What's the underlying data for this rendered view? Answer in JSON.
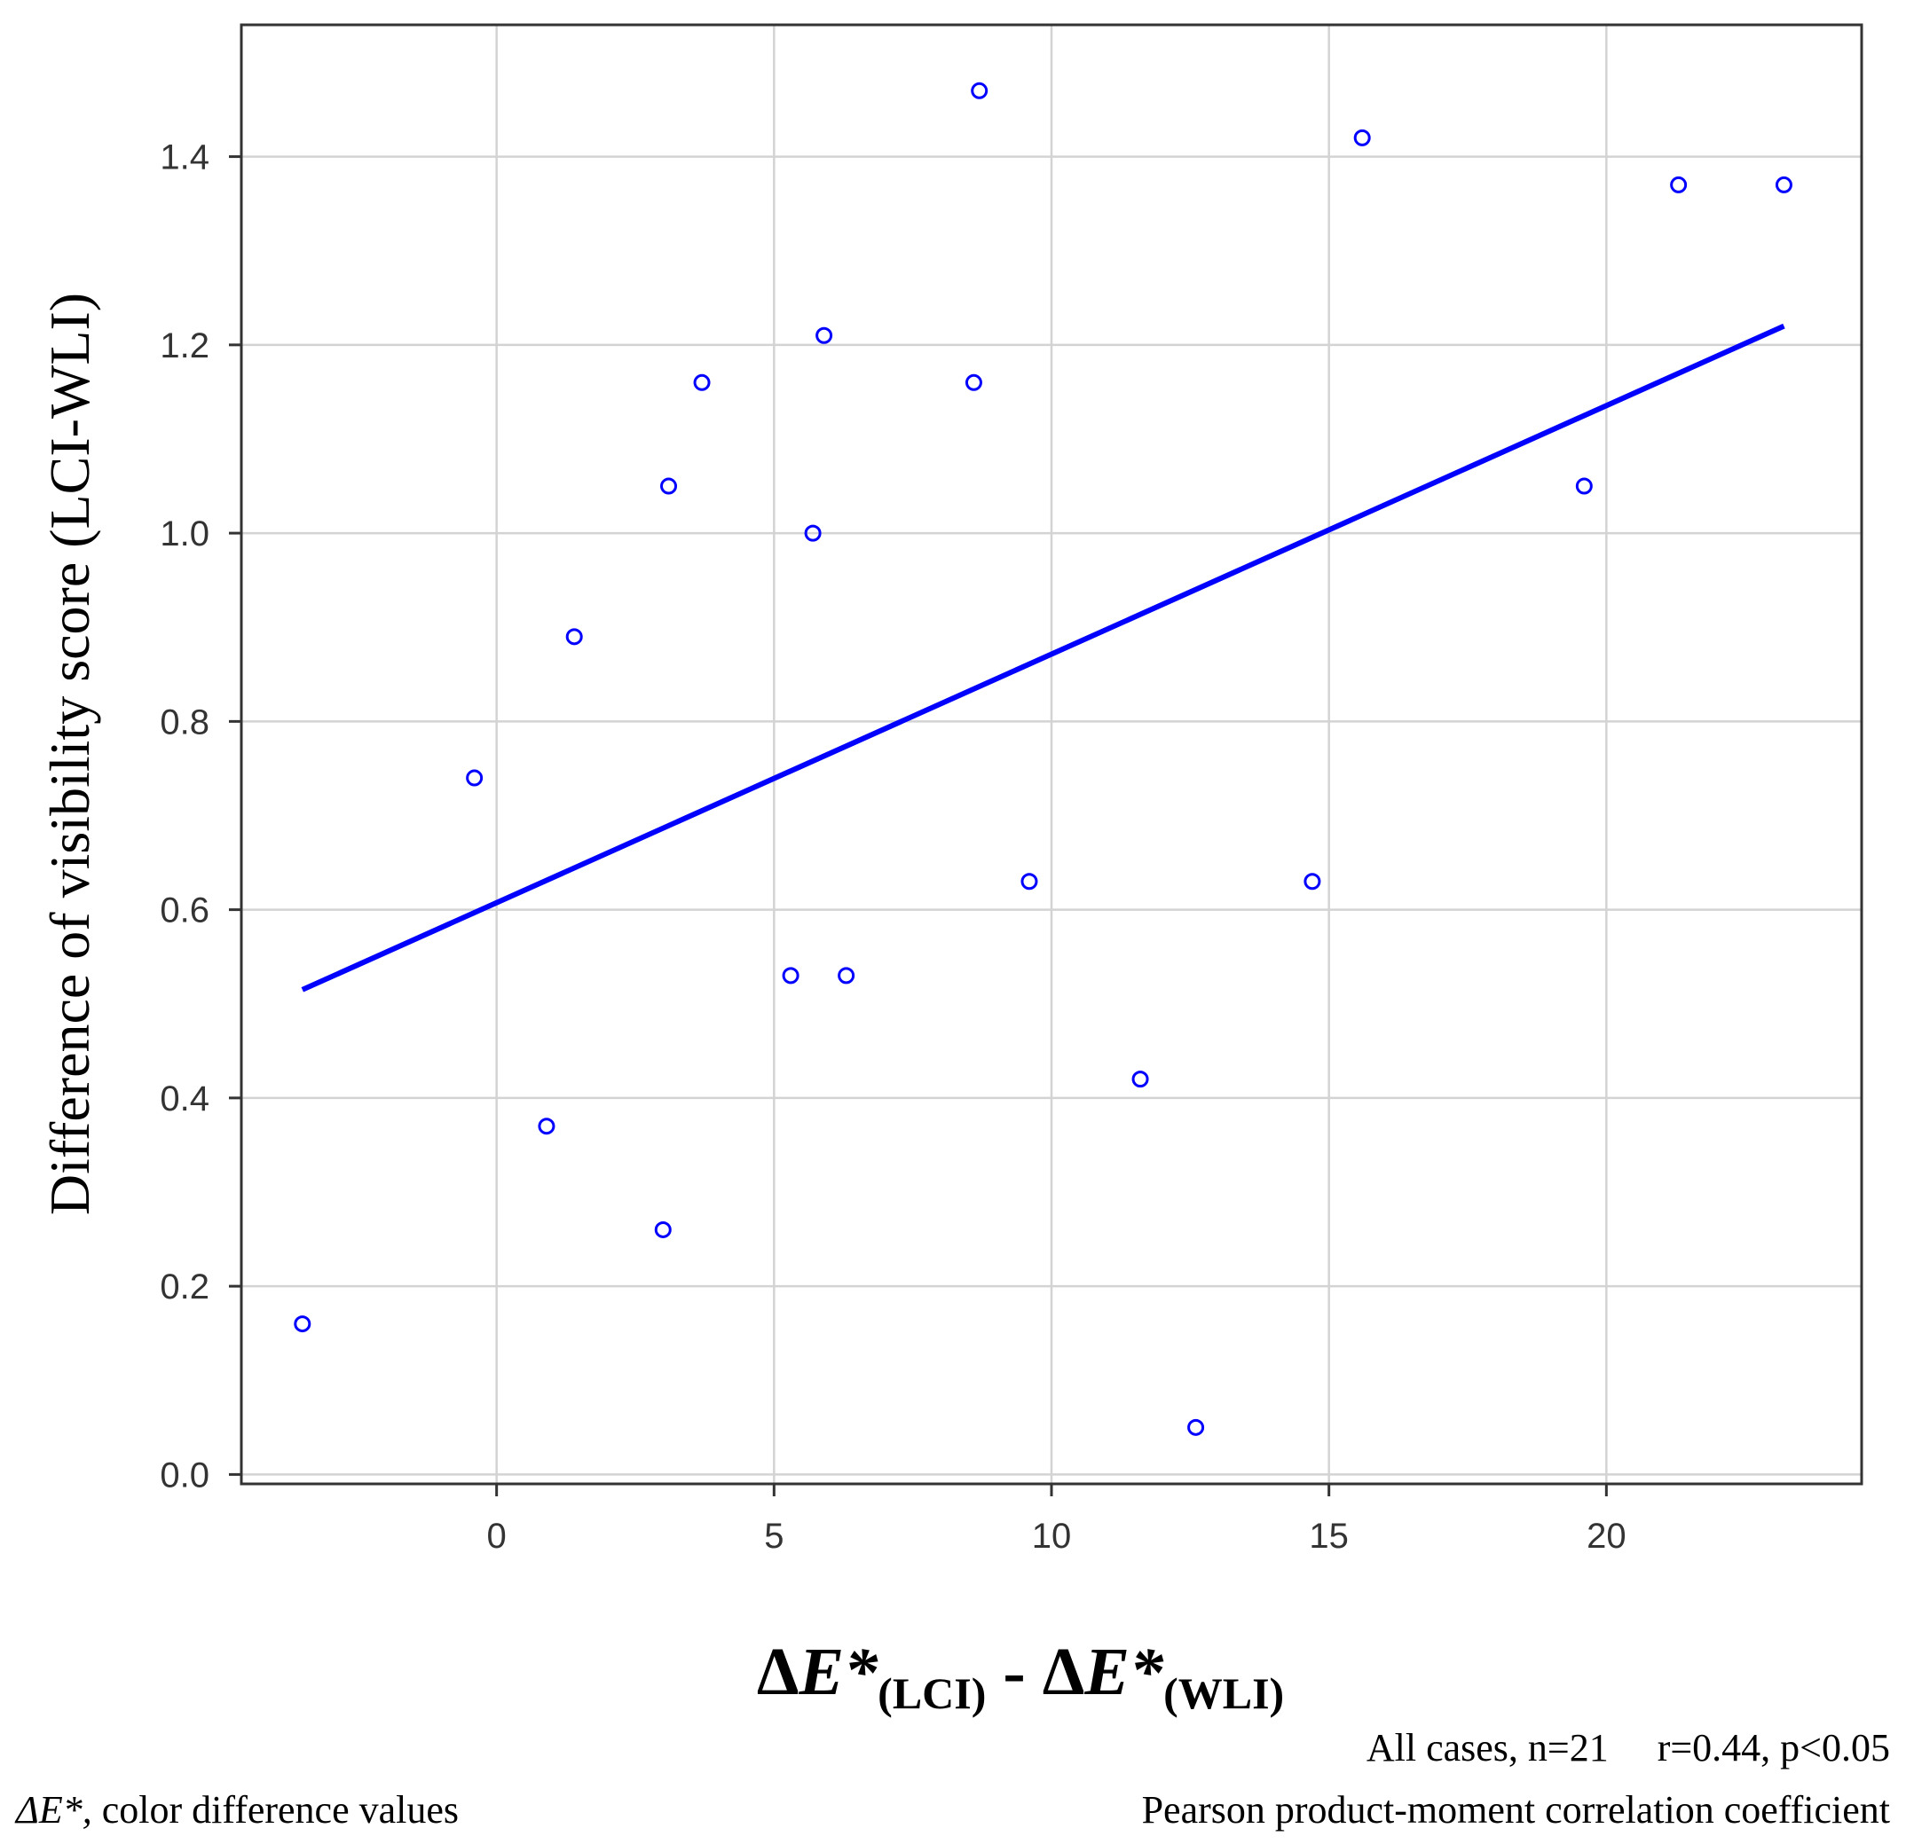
{
  "chart_data": {
    "type": "scatter",
    "ylabel": "Difference of visibility score (LCI-WLI)",
    "xlabel": {
      "delta": "Δ",
      "e_star": "E*",
      "sub_lci": "(LCI)",
      "minus": " - ",
      "sub_wli": "(WLI)"
    },
    "xlim": [
      -4.6,
      24.6
    ],
    "ylim": [
      -0.01,
      1.54
    ],
    "x_ticks": [
      0,
      5,
      10,
      15,
      20
    ],
    "y_ticks": [
      0.0,
      0.2,
      0.4,
      0.6,
      0.8,
      1.0,
      1.2,
      1.4
    ],
    "x_tick_labels": [
      "0",
      "5",
      "10",
      "15",
      "20"
    ],
    "y_tick_labels": [
      "0.0",
      "0.2",
      "0.4",
      "0.6",
      "0.8",
      "1.0",
      "1.2",
      "1.4"
    ],
    "grid": true,
    "point_color": "#0000ff",
    "line_color": "#0000ff",
    "points": [
      {
        "x": -3.5,
        "y": 0.16
      },
      {
        "x": -0.4,
        "y": 0.74
      },
      {
        "x": 0.9,
        "y": 0.37
      },
      {
        "x": 1.4,
        "y": 0.89
      },
      {
        "x": 3.0,
        "y": 0.26
      },
      {
        "x": 3.1,
        "y": 1.05
      },
      {
        "x": 3.7,
        "y": 1.16
      },
      {
        "x": 5.3,
        "y": 0.53
      },
      {
        "x": 5.7,
        "y": 1.0
      },
      {
        "x": 5.9,
        "y": 1.21
      },
      {
        "x": 6.3,
        "y": 0.53
      },
      {
        "x": 8.6,
        "y": 1.16
      },
      {
        "x": 8.7,
        "y": 1.47
      },
      {
        "x": 9.6,
        "y": 0.63
      },
      {
        "x": 11.6,
        "y": 0.42
      },
      {
        "x": 12.6,
        "y": 0.05
      },
      {
        "x": 14.7,
        "y": 0.63
      },
      {
        "x": 15.6,
        "y": 1.42
      },
      {
        "x": 19.6,
        "y": 1.05
      },
      {
        "x": 21.3,
        "y": 1.37
      },
      {
        "x": 23.2,
        "y": 1.37
      }
    ],
    "regression_line": {
      "x": [
        -3.5,
        23.2
      ],
      "y": [
        0.515,
        1.22
      ]
    }
  },
  "notes": {
    "stats_line": "All cases, n=21     r=0.44, p<0.05",
    "legend_delta": "ΔE*,",
    "legend_text": " color difference values",
    "method": "Pearson product-moment correlation coefficient"
  }
}
